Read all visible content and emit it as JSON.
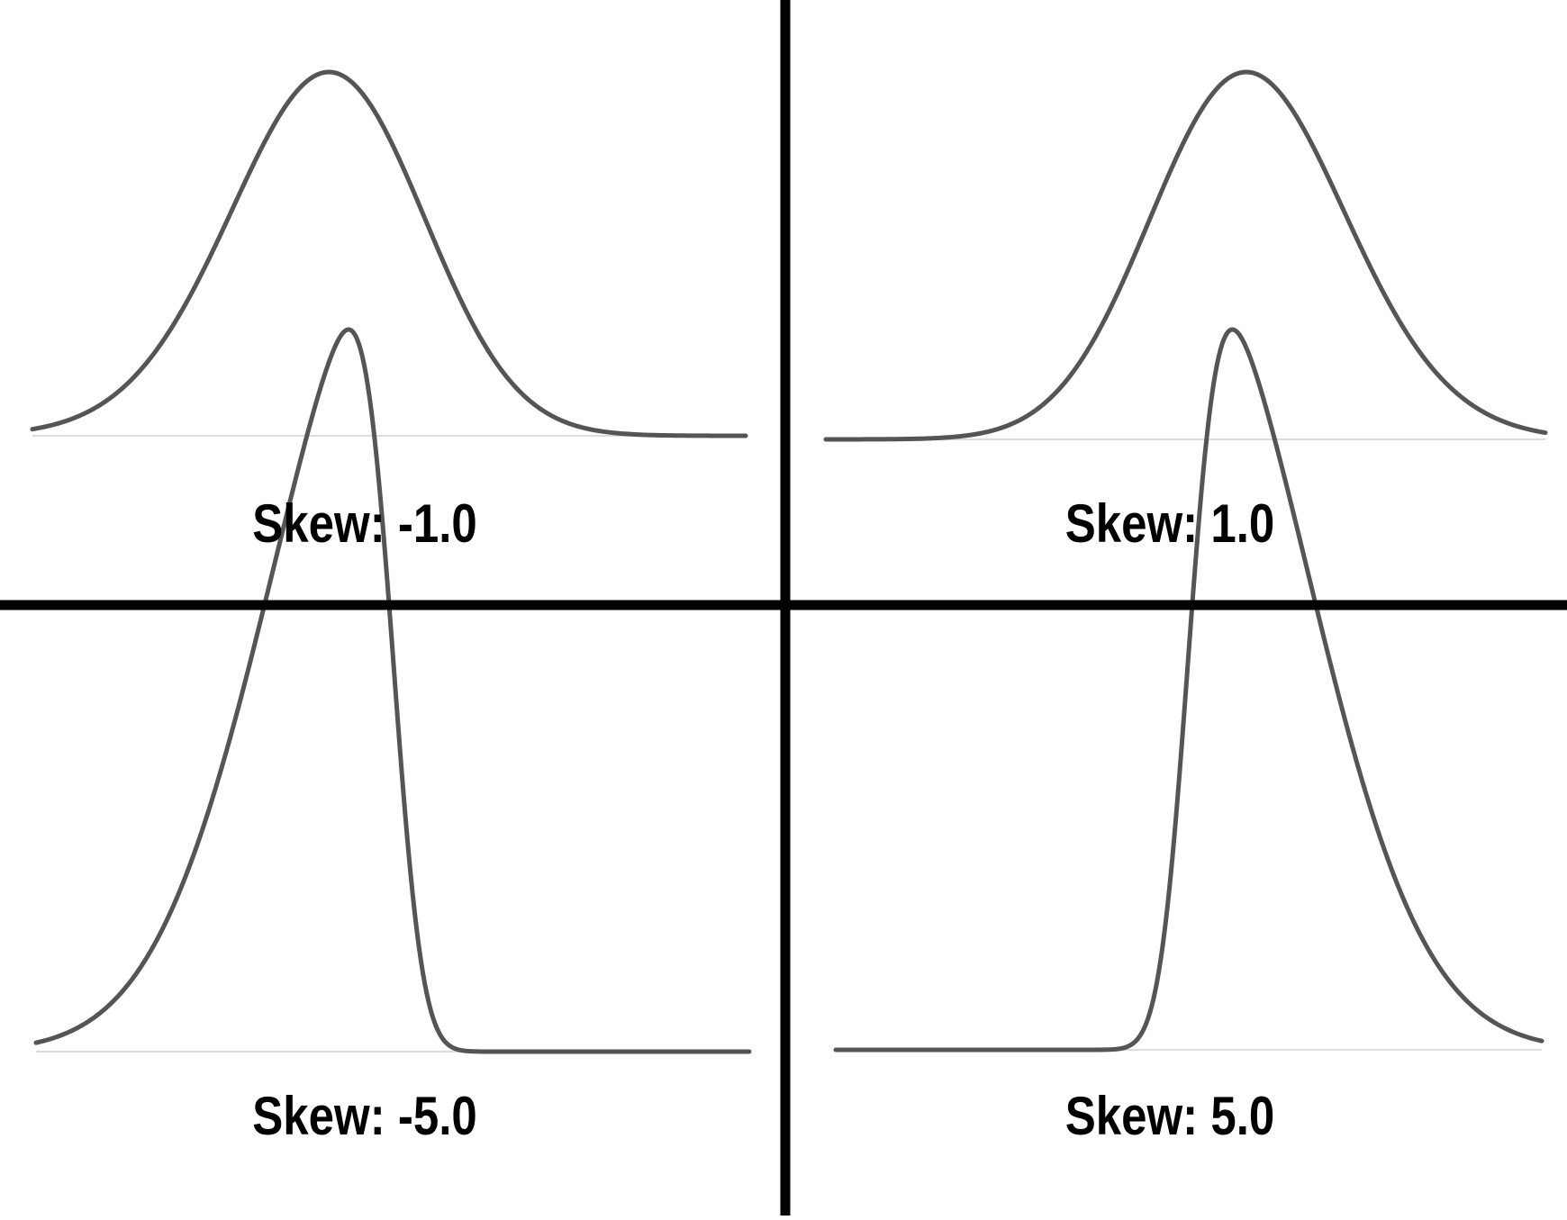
{
  "chart_data": [
    {
      "type": "line",
      "title": "Skew: -1.0",
      "skew": -1.0,
      "xlim": [
        -3,
        3
      ],
      "grid": false,
      "curve_color": "#555555",
      "baseline_color": "#dddddd"
    },
    {
      "type": "line",
      "title": "Skew: 1.0",
      "skew": 1.0,
      "xlim": [
        -3,
        3
      ],
      "grid": false,
      "curve_color": "#555555",
      "baseline_color": "#dddddd"
    },
    {
      "type": "line",
      "title": "Skew: -5.0",
      "skew": -5.0,
      "xlim": [
        -3,
        3
      ],
      "grid": false,
      "curve_color": "#555555",
      "baseline_color": "#dddddd"
    },
    {
      "type": "line",
      "title": "Skew: 5.0",
      "skew": 5.0,
      "xlim": [
        -3,
        3
      ],
      "grid": false,
      "curve_color": "#555555",
      "baseline_color": "#dddddd"
    }
  ],
  "colors": {
    "divider": "#000000",
    "background": "#ffffff"
  }
}
